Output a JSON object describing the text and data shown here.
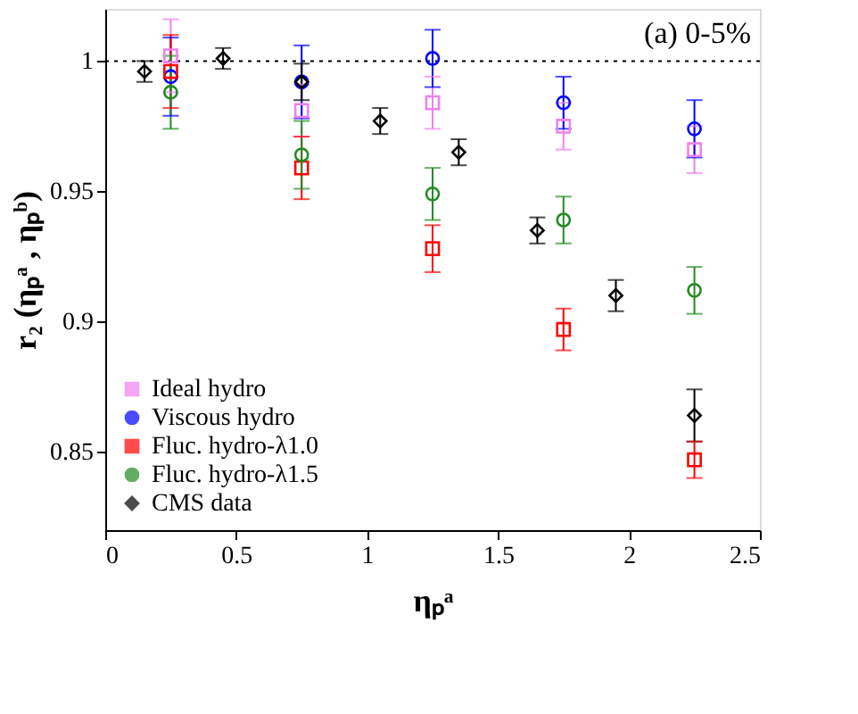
{
  "chart_data": {
    "type": "scatter",
    "xlabel": "ηₚᵃ",
    "ylabel": "r₂ (ηₚᵃ , ηₚᵇ)",
    "annotations": [
      "(a) 0-5%"
    ],
    "xlim": [
      0,
      2.5
    ],
    "xticks": [
      0,
      0.5,
      1,
      1.5,
      2,
      2.5
    ],
    "ylim": [
      0.82,
      1.02
    ],
    "yticks": [
      0.85,
      0.9,
      0.95,
      1
    ],
    "grid": false,
    "legend": "bottom left",
    "ref_lines": [
      {
        "axis": "y",
        "value": 1,
        "line_style": "dotted",
        "color": "#000000"
      }
    ],
    "series": [
      {
        "name": "Ideal hydro",
        "color": "#ee82ee",
        "marker": "square",
        "x": [
          0.25,
          0.75,
          1.25,
          1.75,
          2.25
        ],
        "values": [
          1.002,
          0.981,
          0.984,
          0.975,
          0.966
        ],
        "errors": [
          0.014,
          0.01,
          0.01,
          0.009,
          0.009
        ]
      },
      {
        "name": "Viscous hydro",
        "color": "#0000ff",
        "marker": "circle",
        "x": [
          0.25,
          0.75,
          1.25,
          1.75,
          2.25
        ],
        "values": [
          0.994,
          0.992,
          1.001,
          0.984,
          0.974
        ],
        "errors": [
          0.015,
          0.014,
          0.011,
          0.01,
          0.011
        ]
      },
      {
        "name": "Fluc. hydro-λ1.0",
        "color": "#ff0000",
        "marker": "square",
        "x": [
          0.25,
          0.75,
          1.25,
          1.75,
          2.25
        ],
        "values": [
          0.996,
          0.959,
          0.928,
          0.897,
          0.847
        ],
        "errors": [
          0.014,
          0.012,
          0.009,
          0.008,
          0.007
        ]
      },
      {
        "name": "Fluc. hydro-λ1.5",
        "color": "#228b22",
        "marker": "circle",
        "x": [
          0.25,
          0.75,
          1.25,
          1.75,
          2.25
        ],
        "values": [
          0.988,
          0.964,
          0.949,
          0.939,
          0.912
        ],
        "errors": [
          0.014,
          0.013,
          0.01,
          0.009,
          0.009
        ]
      },
      {
        "name": "CMS data",
        "color": "#000000",
        "marker": "diamond",
        "x": [
          0.15,
          0.45,
          0.75,
          1.05,
          1.35,
          1.65,
          1.95,
          2.25
        ],
        "values": [
          0.996,
          1.001,
          0.992,
          0.977,
          0.965,
          0.935,
          0.91,
          0.864
        ],
        "errors": [
          0.004,
          0.004,
          0.007,
          0.005,
          0.005,
          0.005,
          0.006,
          0.01
        ]
      }
    ]
  }
}
